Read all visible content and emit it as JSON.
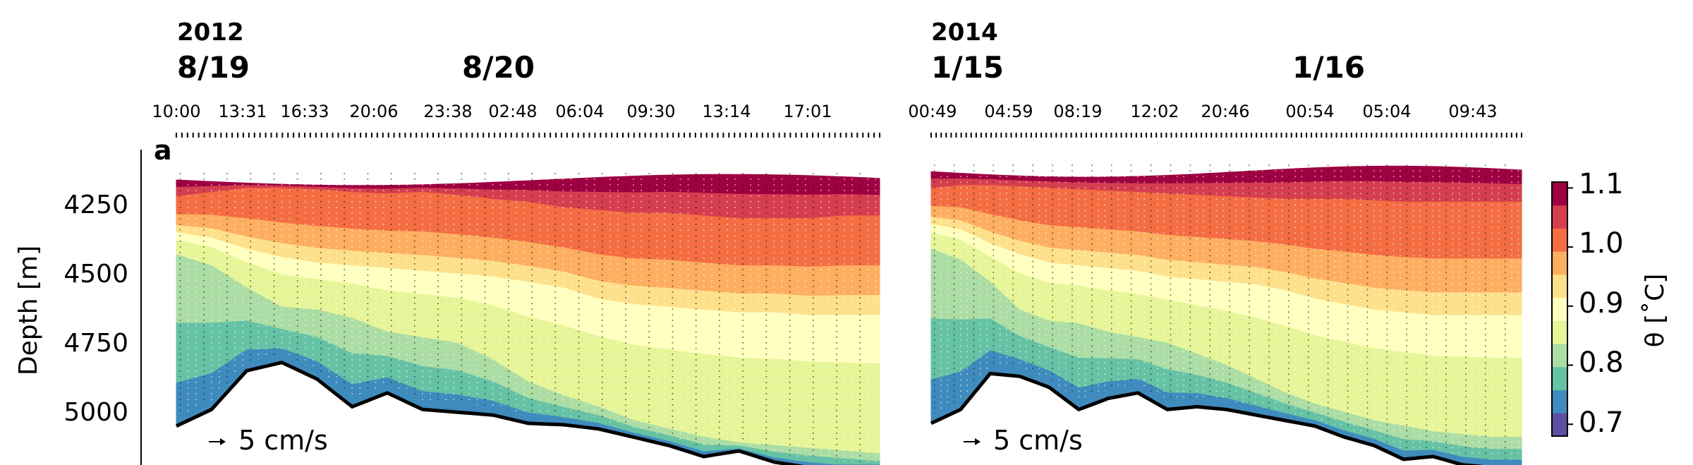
{
  "panel_label": "a",
  "ylabel": "Depth [m]",
  "colorbar": {
    "label": "θ [˚C]",
    "ticks": [
      "1.1",
      "1.0",
      "0.9",
      "0.8",
      "0.7"
    ],
    "range": [
      0.68,
      1.11
    ],
    "colors": [
      "#5e4fa2",
      "#3f8bbd",
      "#66c2a5",
      "#abdda4",
      "#e6f598",
      "#ffffbf",
      "#fee08b",
      "#fdae61",
      "#f46d43",
      "#d53e4f",
      "#9e0142"
    ]
  },
  "chart_data": [
    {
      "type": "heatmap",
      "year_label": "2012",
      "date_labels": [
        "8/19",
        "8/20"
      ],
      "time_labels": [
        "10:00",
        "13:31",
        "16:33",
        "20:06",
        "23:38",
        "02:48",
        "06:04",
        "09:30",
        "13:14",
        "17:01"
      ],
      "ylabel": "Depth [m]",
      "yticks": [
        "4250",
        "4500",
        "4750",
        "5000"
      ],
      "ylim": [
        5200,
        4050
      ],
      "velocity_scale": "5 cm/s",
      "x": [
        0,
        0.05,
        0.1,
        0.15,
        0.2,
        0.25,
        0.3,
        0.35,
        0.4,
        0.45,
        0.5,
        0.55,
        0.6,
        0.65,
        0.7,
        0.75,
        0.8,
        0.85,
        0.9,
        0.95,
        1.0
      ],
      "bottom_depth": [
        5020,
        4960,
        4820,
        4790,
        4850,
        4950,
        4900,
        4960,
        4970,
        4980,
        5010,
        5015,
        5030,
        5060,
        5090,
        5130,
        5110,
        5150,
        5170,
        5180,
        5190
      ],
      "isotherm_depth": {
        "1.0": [
          4190,
          4175,
          4160,
          4160,
          4165,
          4175,
          4180,
          4175,
          4185,
          4200,
          4210,
          4230,
          4240,
          4250,
          4250,
          4260,
          4270,
          4270,
          4270,
          4260,
          4260
        ],
        "0.9": [
          4320,
          4340,
          4380,
          4410,
          4430,
          4440,
          4450,
          4460,
          4470,
          4480,
          4500,
          4520,
          4560,
          4580,
          4590,
          4600,
          4610,
          4610,
          4620,
          4620,
          4620
        ],
        "0.8": [
          4400,
          4440,
          4520,
          4590,
          4600,
          4630,
          4680,
          4700,
          4720,
          4780,
          4860,
          4910,
          4950,
          5000,
          5030,
          5060,
          5080,
          5090,
          5100,
          5110,
          5120
        ]
      }
    },
    {
      "type": "heatmap",
      "year_label": "2014",
      "date_labels": [
        "1/15",
        "1/16"
      ],
      "time_labels": [
        "00:49",
        "04:59",
        "08:19",
        "12:02",
        "20:46",
        "00:54",
        "05:04",
        "09:43"
      ],
      "ylabel": "",
      "yticks": [
        "4250",
        "4500",
        "4750",
        "5000"
      ],
      "ylim": [
        5200,
        4050
      ],
      "velocity_scale": "5 cm/s",
      "x": [
        0,
        0.05,
        0.1,
        0.15,
        0.2,
        0.25,
        0.3,
        0.35,
        0.4,
        0.45,
        0.5,
        0.55,
        0.6,
        0.65,
        0.7,
        0.75,
        0.8,
        0.85,
        0.9,
        0.95,
        1.0
      ],
      "bottom_depth": [
        5010,
        4960,
        4830,
        4840,
        4880,
        4960,
        4920,
        4900,
        4960,
        4950,
        4960,
        4980,
        5000,
        5020,
        5060,
        5090,
        5140,
        5130,
        5160,
        5170,
        5170
      ],
      "isotherm_depth": {
        "1.0": [
          4160,
          4150,
          4150,
          4155,
          4160,
          4165,
          4170,
          4175,
          4180,
          4185,
          4190,
          4195,
          4200,
          4200,
          4200,
          4205,
          4210,
          4210,
          4210,
          4210,
          4210
        ],
        "0.9": [
          4290,
          4310,
          4360,
          4400,
          4430,
          4440,
          4450,
          4460,
          4480,
          4490,
          4500,
          4510,
          4530,
          4560,
          4580,
          4600,
          4610,
          4620,
          4620,
          4620,
          4620
        ],
        "0.8": [
          4380,
          4420,
          4500,
          4600,
          4640,
          4650,
          4680,
          4700,
          4720,
          4760,
          4800,
          4850,
          4900,
          4940,
          4970,
          5000,
          5020,
          5040,
          5050,
          5060,
          5060
        ]
      }
    }
  ]
}
